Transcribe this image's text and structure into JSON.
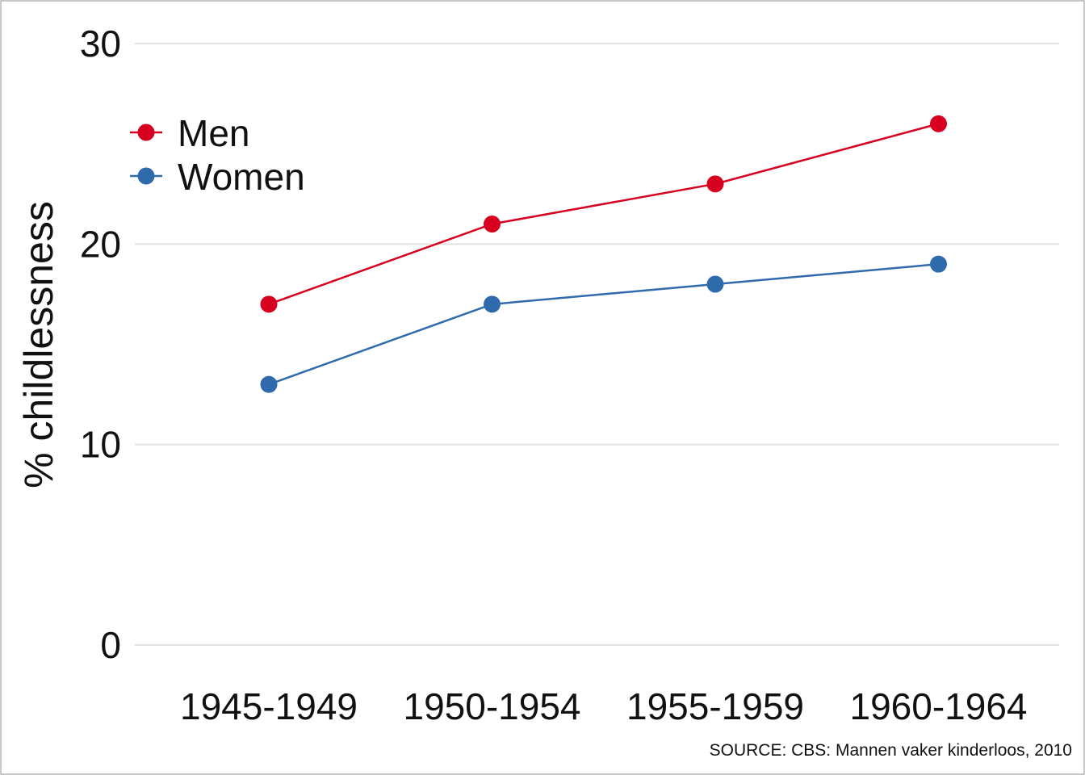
{
  "chart_data": {
    "type": "line",
    "title": "",
    "xlabel": "",
    "ylabel": "% childlessness",
    "categories": [
      "1945-1949",
      "1950-1954",
      "1955-1959",
      "1960-1964"
    ],
    "series": [
      {
        "name": "Men",
        "color": "#d7001f",
        "values": [
          17,
          21,
          23,
          26
        ]
      },
      {
        "name": "Women",
        "color": "#2f6aad",
        "values": [
          13,
          17,
          18,
          19
        ]
      }
    ],
    "ylim": [
      0,
      30
    ],
    "yticks": [
      0,
      10,
      20,
      30
    ],
    "grid": true,
    "legend_position": "top-left",
    "source": "SOURCE: CBS: Mannen vaker kinderloos, 2010"
  }
}
